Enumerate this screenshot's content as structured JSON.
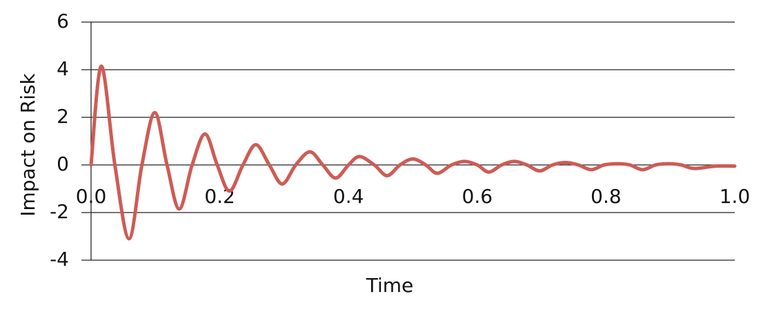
{
  "chart_data": {
    "type": "line",
    "x_label": "Time",
    "y_label": "Impact on Risk",
    "x": [
      0,
      0.016,
      0.037,
      0.059,
      0.079,
      0.099,
      0.118,
      0.137,
      0.157,
      0.177,
      0.196,
      0.215,
      0.236,
      0.256,
      0.277,
      0.297,
      0.318,
      0.34,
      0.36,
      0.38,
      0.4,
      0.417,
      0.44,
      0.46,
      0.48,
      0.5,
      0.52,
      0.538,
      0.56,
      0.58,
      0.6,
      0.618,
      0.638,
      0.658,
      0.677,
      0.697,
      0.717,
      0.737,
      0.757,
      0.777,
      0.797,
      0.818,
      0.837,
      0.857,
      0.877,
      0.898,
      0.917,
      0.937,
      0.97,
      1.0
    ],
    "values": [
      0,
      4.15,
      0,
      -3.1,
      0,
      2.2,
      0,
      -1.85,
      0,
      1.3,
      0,
      -1.1,
      0,
      0.85,
      0,
      -0.8,
      0,
      0.55,
      0,
      -0.55,
      0,
      0.35,
      0,
      -0.45,
      0,
      0.25,
      0,
      -0.35,
      0,
      0.15,
      0,
      -0.3,
      0,
      0.15,
      0,
      -0.25,
      0,
      0.1,
      0,
      -0.2,
      0,
      0.05,
      0,
      -0.2,
      0,
      0.05,
      0,
      -0.15,
      -0.05,
      -0.05
    ],
    "color": "#cd5c55",
    "xlim": [
      0,
      1
    ],
    "xticks": [
      {
        "value": 0,
        "label": "0.0"
      },
      0.2,
      0.4,
      0.6,
      0.8,
      {
        "value": 1,
        "label": "1.0"
      }
    ],
    "ylim": [
      -4,
      6
    ],
    "yticks": [
      -4,
      -2,
      0,
      2,
      4,
      6
    ],
    "grid": true
  }
}
